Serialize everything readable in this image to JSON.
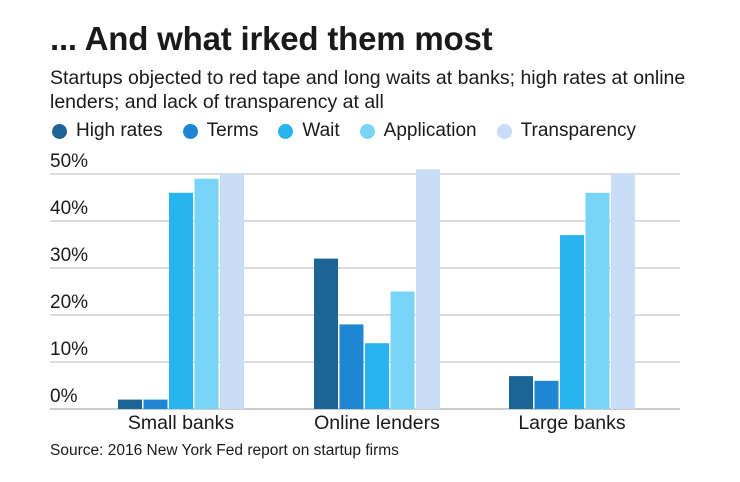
{
  "title": "... And what irked them most",
  "subtitle": "Startups objected to red tape and long waits at banks; high rates at online lenders; and lack of transparency at all",
  "source": "Source: 2016 New York Fed report on startup firms",
  "colors": {
    "High rates": "#1c6496",
    "Terms": "#1f86d3",
    "Wait": "#27b4ef",
    "Application": "#79d5f7",
    "Transparency": "#c7def6"
  },
  "chart_data": {
    "type": "bar",
    "title": "... And what irked them most",
    "subtitle": "Startups objected to red tape and long waits at banks; high rates at online lenders; and lack of transparency at all",
    "categories": [
      "Small banks",
      "Online lenders",
      "Large banks"
    ],
    "series": [
      {
        "name": "High rates",
        "values": [
          2,
          32,
          7
        ]
      },
      {
        "name": "Terms",
        "values": [
          2,
          18,
          6
        ]
      },
      {
        "name": "Wait",
        "values": [
          46,
          14,
          37
        ]
      },
      {
        "name": "Application",
        "values": [
          49,
          25,
          46
        ]
      },
      {
        "name": "Transparency",
        "values": [
          50,
          51,
          50
        ]
      }
    ],
    "ylim": [
      0,
      50
    ],
    "yticks": [
      "0%",
      "10%",
      "20%",
      "30%",
      "40%",
      "50%"
    ],
    "grid": true,
    "legend": "top",
    "xlabel": "",
    "ylabel": ""
  }
}
